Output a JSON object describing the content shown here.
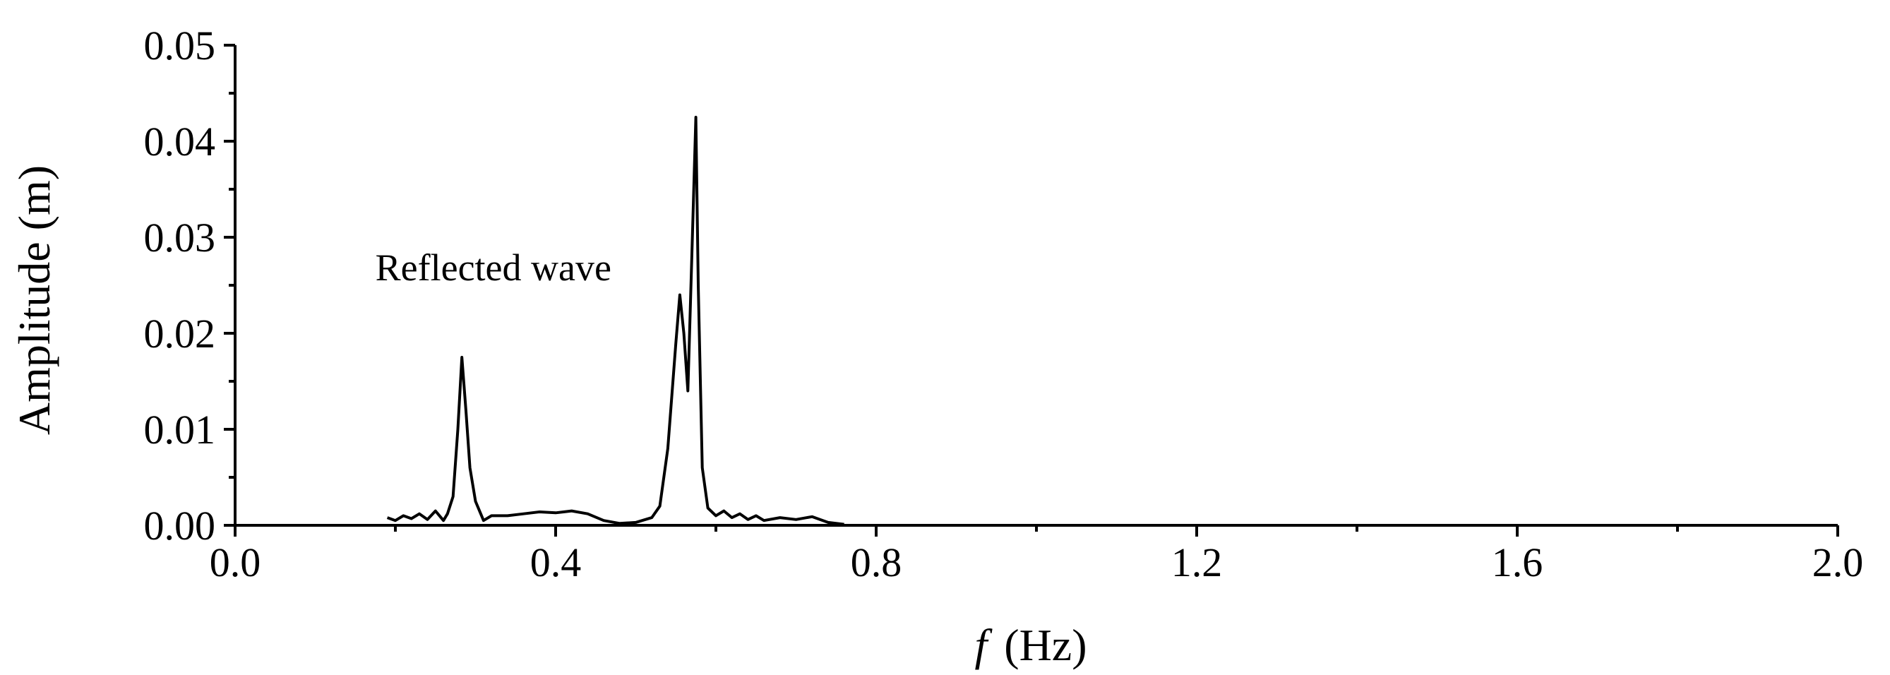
{
  "chart_data": {
    "type": "line",
    "title": "",
    "xlabel": {
      "symbol": "f",
      "unit": "(Hz)"
    },
    "ylabel": "Amplitude (m)",
    "xlim": [
      0.0,
      2.0
    ],
    "ylim": [
      0.0,
      0.05
    ],
    "xticks": [
      "0.0",
      "0.4",
      "0.8",
      "1.2",
      "1.6",
      "2.0"
    ],
    "yticks": [
      "0.00",
      "0.01",
      "0.02",
      "0.03",
      "0.04",
      "0.05"
    ],
    "grid": false,
    "annotation": {
      "text": "Reflected wave",
      "x": 0.175,
      "y": 0.0255
    },
    "series": [
      {
        "color": "#000000",
        "x": [
          0.19,
          0.2,
          0.21,
          0.22,
          0.23,
          0.24,
          0.25,
          0.26,
          0.265,
          0.272,
          0.278,
          0.283,
          0.288,
          0.293,
          0.3,
          0.31,
          0.32,
          0.33,
          0.34,
          0.36,
          0.38,
          0.4,
          0.41,
          0.42,
          0.44,
          0.46,
          0.48,
          0.5,
          0.52,
          0.53,
          0.54,
          0.55,
          0.555,
          0.56,
          0.565,
          0.57,
          0.575,
          0.578,
          0.583,
          0.59,
          0.6,
          0.61,
          0.62,
          0.63,
          0.64,
          0.65,
          0.66,
          0.68,
          0.7,
          0.72,
          0.74,
          0.76
        ],
        "y": [
          0.0008,
          0.0005,
          0.001,
          0.0007,
          0.0012,
          0.0006,
          0.0015,
          0.0005,
          0.0012,
          0.003,
          0.01,
          0.0175,
          0.012,
          0.006,
          0.0025,
          0.0005,
          0.001,
          0.001,
          0.001,
          0.0012,
          0.0014,
          0.0013,
          0.0014,
          0.0015,
          0.0012,
          0.0005,
          0.0002,
          0.0003,
          0.0008,
          0.002,
          0.008,
          0.019,
          0.024,
          0.02,
          0.014,
          0.028,
          0.0425,
          0.025,
          0.006,
          0.0018,
          0.001,
          0.0015,
          0.0008,
          0.0012,
          0.0006,
          0.001,
          0.0005,
          0.0008,
          0.0006,
          0.0009,
          0.0003,
          0.0001
        ]
      }
    ]
  }
}
